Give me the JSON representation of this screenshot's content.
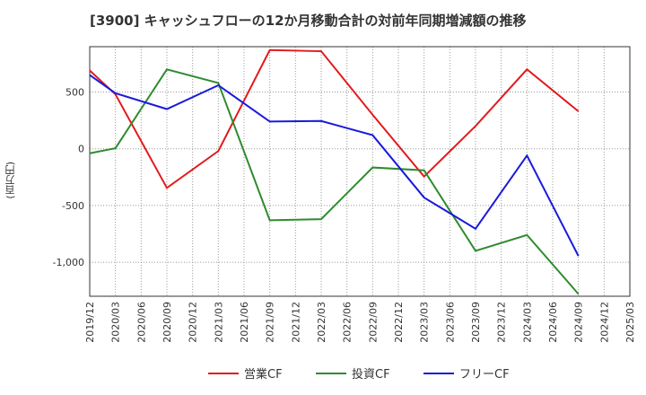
{
  "title": "[3900]  キャッシュフローの12か月移動合計の対前年同期増減額の推移",
  "ylabel": "(百万円)",
  "chart_data": {
    "type": "line",
    "x": [
      "2019/12",
      "2020/03",
      "2020/06",
      "2020/09",
      "2020/12",
      "2021/03",
      "2021/06",
      "2021/09",
      "2021/12",
      "2022/03",
      "2022/06",
      "2022/09",
      "2022/12",
      "2023/03",
      "2023/06",
      "2023/09",
      "2023/12",
      "2024/03",
      "2024/06",
      "2024/09",
      "2024/12",
      "2025/03"
    ],
    "ylim": [
      -1300,
      900
    ],
    "yticks": [
      500,
      0,
      -500,
      -1000
    ],
    "ytick_labels": [
      "500",
      "0",
      "-500",
      "-1,000"
    ],
    "series": [
      {
        "name": "営業CF",
        "color": "#e31a1c",
        "values": [
          690,
          480,
          null,
          -345,
          null,
          -20,
          null,
          870,
          null,
          860,
          null,
          300,
          null,
          -245,
          null,
          200,
          null,
          700,
          null,
          330,
          null,
          null
        ]
      },
      {
        "name": "投資CF",
        "color": "#2e8b2e",
        "values": [
          -40,
          5,
          null,
          700,
          null,
          580,
          null,
          -630,
          null,
          -620,
          null,
          -165,
          null,
          -190,
          null,
          -900,
          null,
          -760,
          null,
          -1280,
          null,
          null
        ]
      },
      {
        "name": "フリーCF",
        "color": "#1a1adb",
        "values": [
          650,
          490,
          null,
          350,
          null,
          560,
          null,
          240,
          null,
          245,
          null,
          120,
          null,
          -430,
          null,
          -705,
          null,
          -60,
          null,
          -945,
          null,
          null
        ]
      }
    ]
  }
}
